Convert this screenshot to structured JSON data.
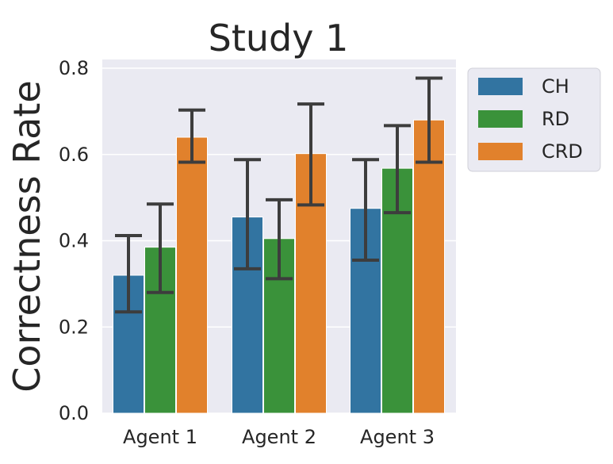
{
  "chart_data": {
    "type": "bar",
    "title": "Study 1",
    "xlabel": "",
    "ylabel": "Correctness Rate",
    "categories": [
      "Agent 1",
      "Agent 2",
      "Agent 3"
    ],
    "ylim": [
      0,
      0.8
    ],
    "yticks": [
      "0.0",
      "0.2",
      "0.4",
      "0.6",
      "0.8"
    ],
    "grid": true,
    "legend_position": "outside-top-right",
    "series": [
      {
        "name": "CH",
        "color": "#3274a1",
        "values": [
          0.32,
          0.455,
          0.475
        ],
        "err_low": [
          0.235,
          0.335,
          0.355
        ],
        "err_high": [
          0.412,
          0.588,
          0.588
        ]
      },
      {
        "name": "RD",
        "color": "#3a923a",
        "values": [
          0.385,
          0.405,
          0.568
        ],
        "err_low": [
          0.28,
          0.312,
          0.465
        ],
        "err_high": [
          0.485,
          0.495,
          0.667
        ]
      },
      {
        "name": "CRD",
        "color": "#e1812c",
        "values": [
          0.64,
          0.602,
          0.68
        ],
        "err_low": [
          0.582,
          0.483,
          0.582
        ],
        "err_high": [
          0.703,
          0.717,
          0.777
        ]
      }
    ]
  }
}
